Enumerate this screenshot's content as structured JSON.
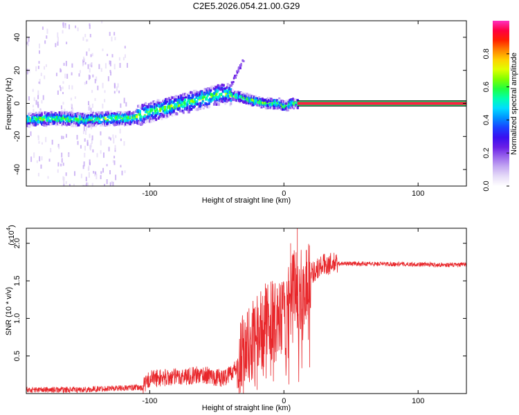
{
  "chart_data": [
    {
      "type": "heatmap",
      "title": "C2E5.2026.054.21.00.G29",
      "xlabel": "Height of straight line (km)",
      "ylabel": "Frequency (Hz)",
      "xlim": [
        -192,
        136
      ],
      "ylim": [
        -50,
        50
      ],
      "xticks": [
        -100,
        0,
        100
      ],
      "yticks": [
        -40,
        -20,
        0,
        20,
        40
      ],
      "colorbar": {
        "label": "Normalized spectral amplitude",
        "range": [
          0.0,
          1.0
        ],
        "ticks": [
          "0.0",
          "0.2",
          "0.4",
          "0.6",
          "0.8"
        ],
        "stops": [
          "#ffffff",
          "#e6dcf8",
          "#c4a8f2",
          "#9a66ec",
          "#6a1fe6",
          "#3a10f0",
          "#1a40ff",
          "#0090ff",
          "#00dcff",
          "#00ffb0",
          "#20ff40",
          "#80ff00",
          "#e0ff00",
          "#ffd000",
          "#ff8000",
          "#ff2000",
          "#ff0040",
          "#ff30c0"
        ]
      },
      "ridge": {
        "x": [
          -192,
          -170,
          -150,
          -130,
          -115,
          -100,
          -80,
          -60,
          -45,
          -35,
          -25,
          -15,
          -5,
          0,
          5,
          10,
          136
        ],
        "y": [
          -10,
          -9,
          -10,
          -9,
          -9,
          -5,
          -1,
          3,
          6,
          4,
          2,
          0,
          0,
          -2,
          0,
          0,
          0
        ]
      },
      "spur": {
        "x": [
          -40,
          -30
        ],
        "y": [
          12,
          28
        ]
      },
      "zero_line": {
        "x": [
          10,
          136
        ],
        "y": 0
      }
    },
    {
      "type": "line",
      "xlabel": "Height of straight line (km)",
      "ylabel": "SNR (10 * v/v)",
      "yscale_label": "(x10",
      "yscale_exp": "4",
      "xlim": [
        -192,
        136
      ],
      "ylim": [
        0,
        2.2
      ],
      "xticks": [
        -100,
        0,
        100
      ],
      "yticks": [
        0.5,
        1.0,
        1.5,
        2.0
      ],
      "ytick_labels": [
        "0.5",
        "1.0",
        "1.5",
        "2.0"
      ],
      "series": [
        {
          "name": "SNR",
          "color": "#e8262a",
          "envelope": {
            "x": [
              -192,
              -150,
              -130,
              -105,
              -100,
              -80,
              -60,
              -45,
              -35,
              -30,
              -25,
              -20,
              -15,
              -10,
              -5,
              0,
              5,
              8,
              10,
              12,
              15,
              20,
              30,
              40,
              50,
              100,
              130,
              136
            ],
            "y": [
              0.05,
              0.05,
              0.07,
              0.08,
              0.2,
              0.22,
              0.25,
              0.2,
              0.35,
              0.55,
              0.65,
              0.75,
              0.9,
              1.0,
              0.9,
              1.0,
              1.2,
              1.5,
              1.3,
              1.35,
              1.4,
              1.6,
              1.72,
              1.73,
              1.73,
              1.72,
              1.71,
              1.72
            ]
          },
          "spikes": {
            "x": [
              -20,
              -5,
              5,
              10
            ],
            "y": [
              0.05,
              1.4,
              2.0,
              2.2
            ]
          }
        }
      ]
    }
  ]
}
